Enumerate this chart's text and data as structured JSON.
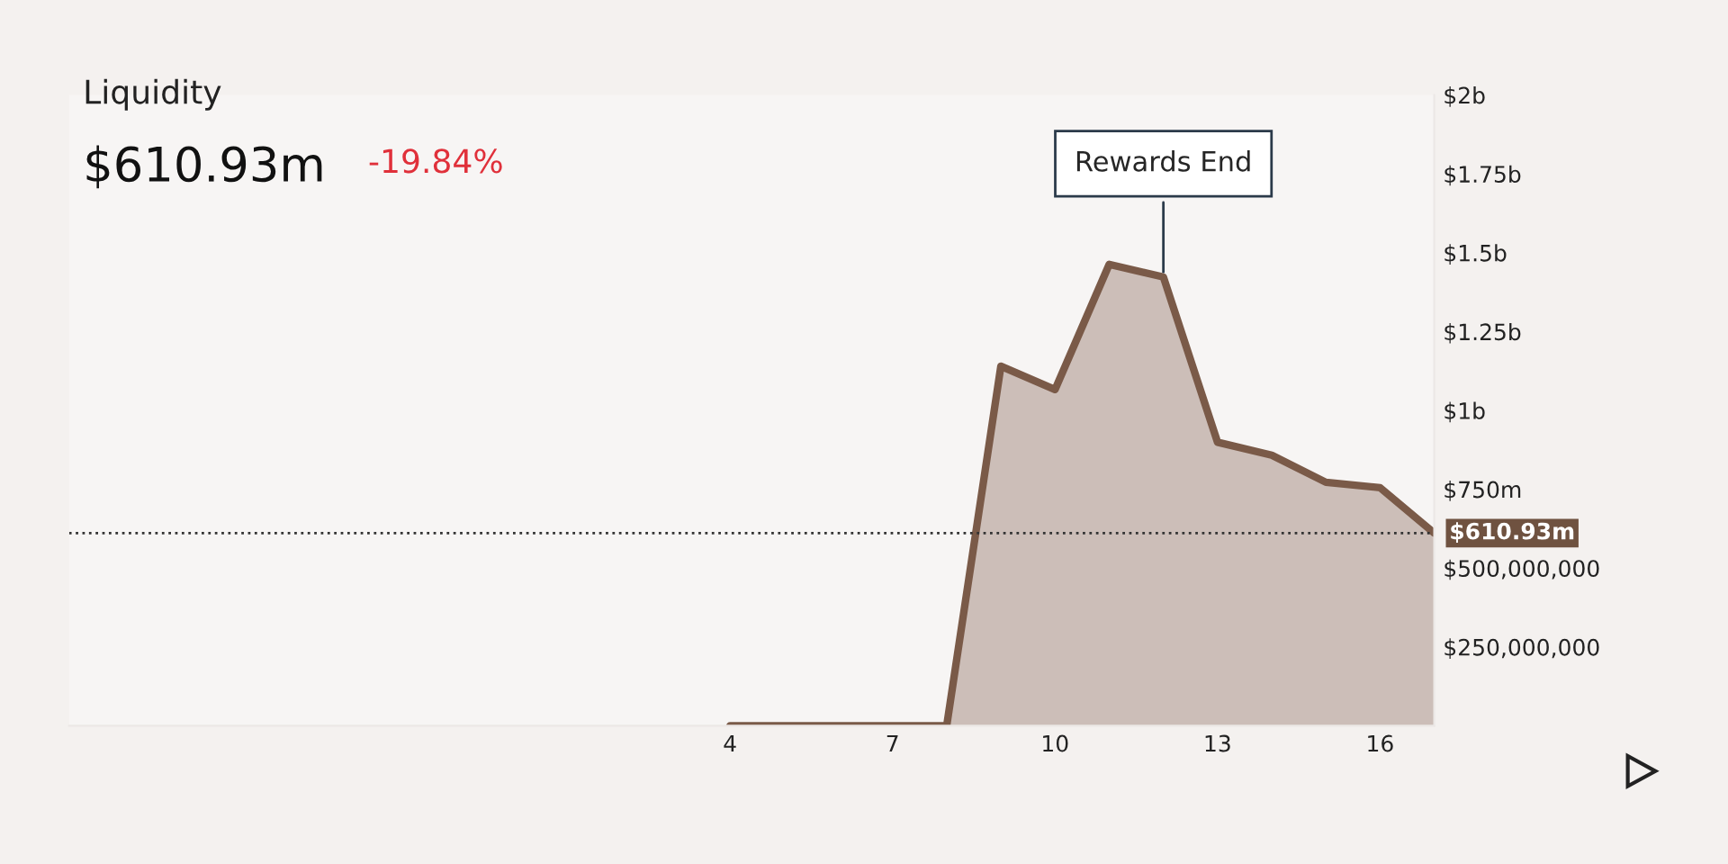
{
  "chart_data": {
    "type": "area",
    "title": "Liquidity",
    "subtitle": "$610.93m",
    "annotations": [
      "-19.84%",
      {
        "text": "Rewards End",
        "x": 12,
        "y": 1423000000
      }
    ],
    "x": [
      4,
      5,
      6,
      7,
      8,
      9,
      10,
      11,
      12,
      13,
      14,
      15,
      16,
      17
    ],
    "series": [
      {
        "color": "#7a5a48",
        "values": [
          0,
          0,
          0,
          0,
          0,
          1140000000,
          1066000000,
          1463000000,
          1423000000,
          899000000,
          858000000,
          772000000,
          755000000,
          610930000
        ]
      }
    ],
    "xlim": [
      -8.2,
      17
    ],
    "xticks": [
      4,
      7,
      10,
      13,
      16
    ],
    "ylim": [
      0,
      2000000000
    ],
    "yticks": [
      {
        "value": 250000000,
        "label": "$250,000,000"
      },
      {
        "value": 500000000,
        "label": "$500,000,000"
      },
      {
        "value": 750000000,
        "label": "$750m"
      },
      {
        "value": 1000000000,
        "label": "$1b"
      },
      {
        "value": 1250000000,
        "label": "$1.25b"
      },
      {
        "value": 1500000000,
        "label": "$1.5b"
      },
      {
        "value": 1750000000,
        "label": "$1.75b"
      },
      {
        "value": 2000000000,
        "label": "$2b"
      }
    ],
    "ref_lines": [
      {
        "axis": "y",
        "value": 610930000,
        "label": "$610.93m",
        "color": "#333333",
        "line_style": "dotted"
      }
    ],
    "grid": false
  }
}
